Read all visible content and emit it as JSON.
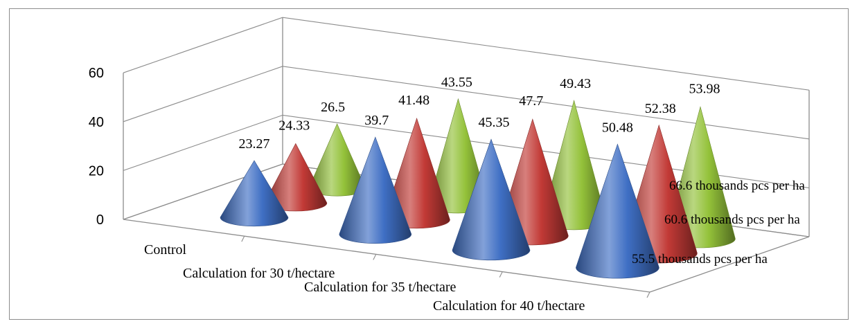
{
  "chart_data": {
    "type": "bar",
    "style": "3d-cone",
    "title": "",
    "categories": [
      "Control",
      "Calculation for 30 t/hectare",
      "Calculation for 35 t/hectare",
      "Calculation for 40 t/hectare"
    ],
    "series": [
      {
        "name": "55.5 thousands pcs per ha",
        "color": "#3f6fc4",
        "values": [
          23.27,
          39.7,
          45.35,
          50.48
        ]
      },
      {
        "name": "60.6 thousands  pcs per ha",
        "color": "#c23a36",
        "values": [
          24.33,
          41.48,
          47.7,
          52.38
        ]
      },
      {
        "name": "66.6 thousands  pcs per ha",
        "color": "#94c23a",
        "values": [
          26.5,
          43.55,
          49.43,
          53.98
        ]
      }
    ],
    "y_ticks": [
      "0",
      "20",
      "40",
      "60"
    ],
    "ylim": [
      0,
      60
    ],
    "grid": true
  }
}
